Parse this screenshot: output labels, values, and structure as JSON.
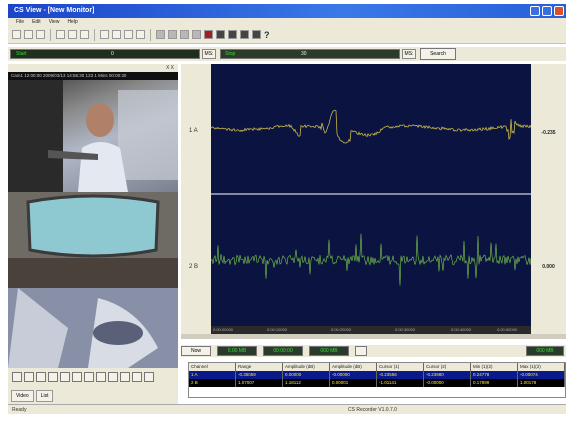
{
  "title": "CS View - [New Monitor]",
  "menu": [
    "File",
    "Edit",
    "View",
    "Help"
  ],
  "search_bar": {
    "start_label": "Start",
    "start_value": "0",
    "start_unit": "MS:",
    "end_label": "Stop",
    "end_value": "30",
    "end_unit": "MS:",
    "search_button": "Search"
  },
  "video": {
    "header": "X X",
    "info": "Cam1  12:00:00  2009/03/13  14:55:30  123  1 Mins 00:00:30",
    "tabs": [
      "Video",
      "List"
    ]
  },
  "channels": [
    {
      "label": "1 A",
      "value": "-0.235",
      "color": "#c8b84a"
    },
    {
      "label": "2 B",
      "value": "0.000",
      "color": "#7ac84a"
    }
  ],
  "x_ticks": [
    "0:00:00000",
    "0:00:10000",
    "0:00:20000",
    "0:00:30000",
    "0:00:40000",
    "0:00:50000"
  ],
  "controls2": {
    "left": "Now",
    "v1": "0.00 MB",
    "v2": "00:00:00",
    "v3": "000 MB",
    "right": "000 MB"
  },
  "table": {
    "headers": [
      "Channel",
      "Range",
      "Amplitude (dB)",
      "Amplitude (dB)",
      "Cursor (1)",
      "Cursor (2)",
      "Min (1)(2)",
      "Max (1)(2)"
    ],
    "rows": [
      [
        "1 A",
        "-0.35059",
        "0.00000",
        "-0.00000",
        "-0.23556",
        "-0.23980",
        "0.24778",
        "-0.00074"
      ],
      [
        "2 B",
        "1.07007",
        "1.18112",
        "0.00001",
        "-1.01141",
        "-0.00000",
        "0.17899",
        "1.00178"
      ]
    ]
  },
  "status": {
    "left": "Ready",
    "middle": "CS Recorder  V1.0.7.0"
  }
}
